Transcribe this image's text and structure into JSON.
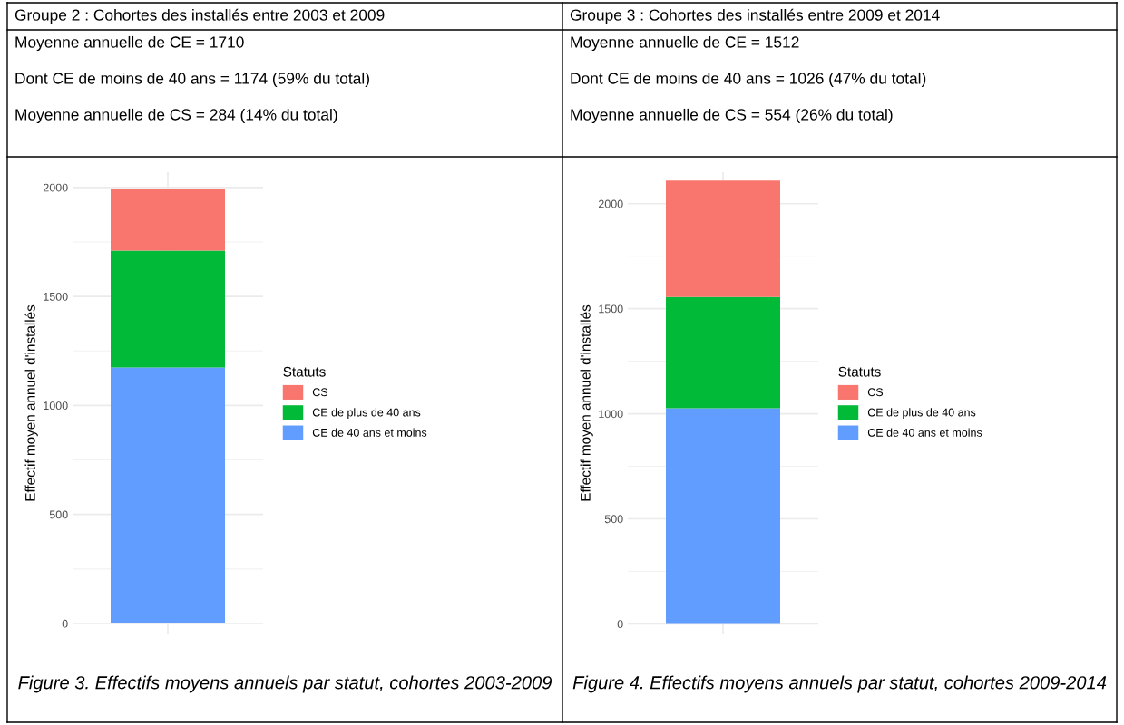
{
  "chart_data": [
    {
      "type": "bar",
      "stacked": true,
      "title": "Groupe 2 : Cohortes des installés entre 2003 et 2009",
      "ylabel": "Effectif moyen annuel d'installés",
      "legend_title": "Statuts",
      "legend": "right",
      "grid": true,
      "categories": [
        null
      ],
      "ylim": [
        -50,
        2070
      ],
      "yticks": [
        0,
        500,
        1000,
        1500,
        2000
      ],
      "series": [
        {
          "name": "CE de 40 ans et moins",
          "color": "#619cff",
          "values": [
            1174
          ]
        },
        {
          "name": "CE de plus de 40 ans",
          "color": "#00ba38",
          "values": [
            536
          ]
        },
        {
          "name": "CS",
          "color": "#f8766d",
          "values": [
            284
          ]
        }
      ],
      "annotations": [
        "Moyenne annuelle de CE = 1710",
        "Dont CE de moins de 40 ans = 1174 (59% du total)",
        "Moyenne annuelle de CS = 284 (14% du total)",
        "Figure 3. Effectifs moyens annuels par statut, cohortes 2003-2009"
      ]
    },
    {
      "type": "bar",
      "stacked": true,
      "title": "Groupe 3 : Cohortes des installés entre 2009 et 2014",
      "ylabel": "Effectif moyen annuel d'installés",
      "legend_title": "Statuts",
      "legend": "right",
      "grid": true,
      "categories": [
        null
      ],
      "ylim": [
        -50,
        2150
      ],
      "yticks": [
        0,
        500,
        1000,
        1500,
        2000
      ],
      "series": [
        {
          "name": "CE de 40 ans et moins",
          "color": "#619cff",
          "values": [
            1026
          ]
        },
        {
          "name": "CE de plus de 40 ans",
          "color": "#00ba38",
          "values": [
            530
          ]
        },
        {
          "name": "CS",
          "color": "#f8766d",
          "values": [
            554
          ]
        }
      ],
      "annotations": [
        "Moyenne annuelle de CE = 1512",
        "Dont CE de moins de 40 ans = 1026 (47% du total)",
        "Moyenne annuelle de CS = 554 (26% du total)",
        "Figure 4. Effectifs moyens annuels par statut, cohortes 2009-2014"
      ]
    }
  ]
}
